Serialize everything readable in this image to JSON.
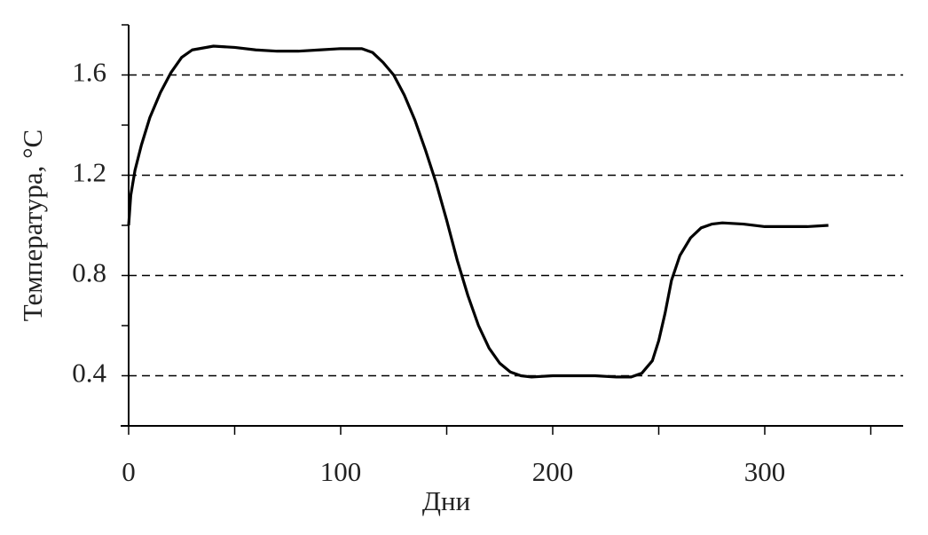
{
  "chart_data": {
    "type": "line",
    "x_label": "Дни",
    "y_label": "Температура, °C",
    "x": [
      0,
      1,
      3,
      6,
      10,
      15,
      20,
      25,
      30,
      40,
      50,
      60,
      70,
      80,
      90,
      100,
      110,
      115,
      120,
      125,
      130,
      135,
      140,
      145,
      150,
      155,
      160,
      165,
      170,
      175,
      180,
      185,
      190,
      200,
      210,
      220,
      230,
      237,
      242,
      247,
      250,
      253,
      256,
      260,
      265,
      270,
      275,
      280,
      290,
      300,
      310,
      320,
      330
    ],
    "values": [
      1.0,
      1.12,
      1.22,
      1.32,
      1.43,
      1.53,
      1.61,
      1.67,
      1.7,
      1.715,
      1.71,
      1.7,
      1.695,
      1.695,
      1.7,
      1.705,
      1.705,
      1.69,
      1.65,
      1.6,
      1.52,
      1.42,
      1.3,
      1.17,
      1.02,
      0.86,
      0.72,
      0.6,
      0.51,
      0.45,
      0.415,
      0.4,
      0.395,
      0.4,
      0.4,
      0.4,
      0.395,
      0.395,
      0.41,
      0.46,
      0.54,
      0.65,
      0.78,
      0.88,
      0.95,
      0.99,
      1.005,
      1.01,
      1.005,
      0.995,
      0.995,
      0.995,
      1.0
    ],
    "color": "#000000",
    "xlim": [
      0,
      365
    ],
    "xticks": [
      0,
      100,
      200,
      300
    ],
    "xminorticks": [
      50,
      150,
      250,
      350
    ],
    "ylim": [
      0.2,
      1.8
    ],
    "yticks": [
      0.4,
      0.8,
      1.2,
      1.6
    ],
    "yminorticks": [
      0.2,
      0.6,
      1.0,
      1.4,
      1.8
    ],
    "grid": true
  }
}
